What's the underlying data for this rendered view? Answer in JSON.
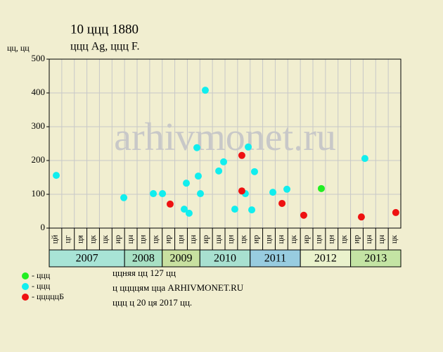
{
  "chart_data": {
    "type": "scatter",
    "title": "10 ццц 1880",
    "subtitle": "ццц Ag, ццц F.",
    "y_label": "цц, цц",
    "watermark": "arhivmonet.ru",
    "xlim": [
      0,
      28
    ],
    "ylim": [
      0,
      500
    ],
    "yticks": [
      0,
      100,
      200,
      300,
      400,
      500
    ],
    "grid": true,
    "categories": [
      "цй",
      "цг",
      "ця",
      "цк",
      "цк",
      "ир",
      "цн",
      "цн",
      "цк",
      "ир",
      "цн",
      "цн",
      "ир",
      "цн",
      "цн",
      "цк",
      "ир",
      "цн",
      "цн",
      "цк",
      "ир",
      "цн",
      "цн",
      "цк",
      "ир",
      "цн",
      "цн",
      "цк"
    ],
    "years": [
      {
        "label": "2007",
        "from": 0,
        "to": 6,
        "color": "#a8e4d6"
      },
      {
        "label": "2008",
        "from": 6,
        "to": 9,
        "color": "#a8e0c4"
      },
      {
        "label": "2009",
        "from": 9,
        "to": 12,
        "color": "#c8e0a0"
      },
      {
        "label": "2010",
        "from": 12,
        "to": 16,
        "color": "#a8e0d0"
      },
      {
        "label": "2011",
        "from": 16,
        "to": 20,
        "color": "#98cce0"
      },
      {
        "label": "2012",
        "from": 20,
        "to": 24,
        "color": "#eaf2cc"
      },
      {
        "label": "2013",
        "from": 24,
        "to": 28,
        "color": "#c4e4a4"
      }
    ],
    "series": [
      {
        "name": "- ццц",
        "color": "#22ee22",
        "x": [
          21.67
        ],
        "values": [
          117
        ]
      },
      {
        "name": "- ццц",
        "color": "#11eeee",
        "x": [
          0.56,
          5.94,
          8.29,
          9.02,
          10.75,
          10.92,
          11.14,
          11.76,
          11.87,
          12.04,
          12.43,
          13.5,
          13.89,
          14.78,
          15.62,
          15.85,
          16.13,
          16.35,
          17.81,
          18.93,
          25.14
        ],
        "values": [
          156,
          90,
          102,
          102,
          56,
          133,
          44,
          238,
          154,
          102,
          408,
          169,
          196,
          56,
          102,
          240,
          54,
          167,
          106,
          115,
          206
        ]
      },
      {
        "name": "- цццццБ",
        "color": "#ee1111",
        "x": [
          9.63,
          15.34,
          15.34,
          18.54,
          20.27,
          24.86,
          27.6
        ],
        "values": [
          71,
          215,
          110,
          73,
          38,
          33,
          46
        ]
      }
    ],
    "notes": [
      "ццняя цц 127 цц",
      "ц ццццям цца ARHIVMONET.RU",
      "ццц ц 20 ця 2017 цц."
    ]
  }
}
